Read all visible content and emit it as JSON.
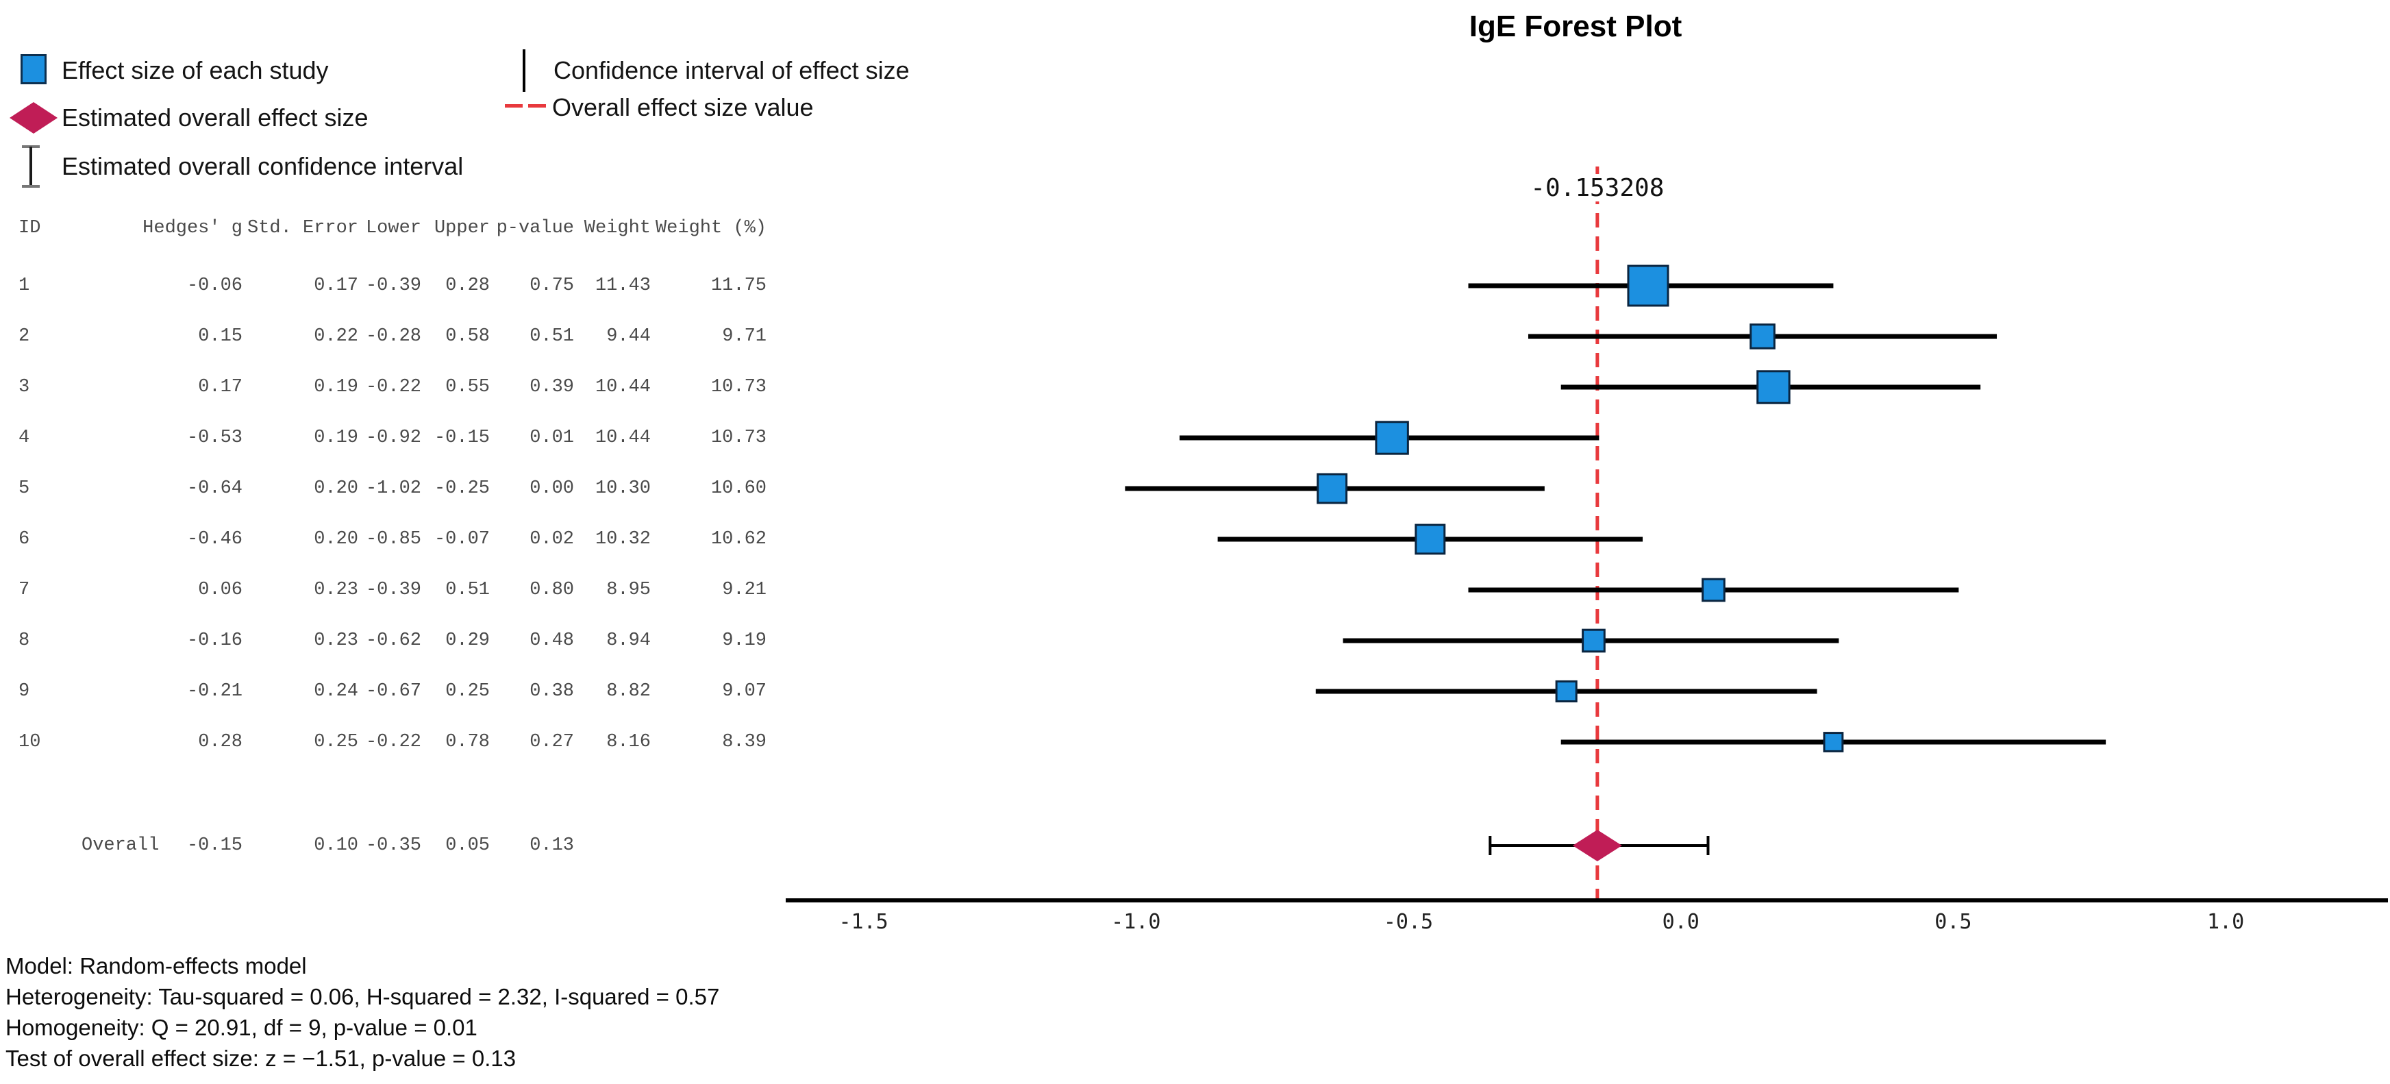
{
  "title": "IgE Forest Plot",
  "legend": {
    "items": [
      {
        "icon": "study-square-icon",
        "label": "Effect size of each study"
      },
      {
        "icon": "overall-diamond-icon",
        "label": "Estimated overall effect size"
      },
      {
        "icon": "overall-ci-icon",
        "label": "Estimated overall confidence interval"
      },
      {
        "icon": "ci-line-icon",
        "label": "Confidence interval of effect size"
      },
      {
        "icon": "ref-line-icon",
        "label": "Overall effect size value"
      }
    ]
  },
  "table": {
    "columns": [
      "ID",
      "Hedges' g",
      "Std. Error",
      "Lower",
      "Upper",
      "p-value",
      "Weight",
      "Weight (%)"
    ],
    "rows": [
      [
        "1",
        "-0.06",
        "0.17",
        "-0.39",
        "0.28",
        "0.75",
        "11.43",
        "11.75"
      ],
      [
        "2",
        "0.15",
        "0.22",
        "-0.28",
        "0.58",
        "0.51",
        "9.44",
        "9.71"
      ],
      [
        "3",
        "0.17",
        "0.19",
        "-0.22",
        "0.55",
        "0.39",
        "10.44",
        "10.73"
      ],
      [
        "4",
        "-0.53",
        "0.19",
        "-0.92",
        "-0.15",
        "0.01",
        "10.44",
        "10.73"
      ],
      [
        "5",
        "-0.64",
        "0.20",
        "-1.02",
        "-0.25",
        "0.00",
        "10.30",
        "10.60"
      ],
      [
        "6",
        "-0.46",
        "0.20",
        "-0.85",
        "-0.07",
        "0.02",
        "10.32",
        "10.62"
      ],
      [
        "7",
        "0.06",
        "0.23",
        "-0.39",
        "0.51",
        "0.80",
        "8.95",
        "9.21"
      ],
      [
        "8",
        "-0.16",
        "0.23",
        "-0.62",
        "0.29",
        "0.48",
        "8.94",
        "9.19"
      ],
      [
        "9",
        "-0.21",
        "0.24",
        "-0.67",
        "0.25",
        "0.38",
        "8.82",
        "9.07"
      ],
      [
        "10",
        "0.28",
        "0.25",
        "-0.22",
        "0.78",
        "0.27",
        "8.16",
        "8.39"
      ]
    ],
    "overall_row": [
      "Overall",
      "-0.15",
      "0.10",
      "-0.35",
      "0.05",
      "0.13"
    ]
  },
  "chart_data": {
    "type": "forest",
    "title": "IgE Forest Plot",
    "x_axis": {
      "ticks": [
        {
          "value": -1.5,
          "label": "-1.5"
        },
        {
          "value": -1.0,
          "label": "-1.0"
        },
        {
          "value": -0.5,
          "label": "-0.5"
        },
        {
          "value": 0.0,
          "label": "0.0"
        },
        {
          "value": 0.5,
          "label": "0.5"
        },
        {
          "value": 1.0,
          "label": "1.0"
        }
      ],
      "range": [
        -1.64,
        1.3
      ]
    },
    "reference_line": {
      "value": -0.153208,
      "label": "-0.153208",
      "style": "dashed"
    },
    "studies": [
      {
        "id": "1",
        "g": -0.06,
        "se": 0.17,
        "lower": -0.39,
        "upper": 0.28,
        "p": 0.75,
        "weight": 11.43,
        "weight_pct": 11.75
      },
      {
        "id": "2",
        "g": 0.15,
        "se": 0.22,
        "lower": -0.28,
        "upper": 0.58,
        "p": 0.51,
        "weight": 9.44,
        "weight_pct": 9.71
      },
      {
        "id": "3",
        "g": 0.17,
        "se": 0.19,
        "lower": -0.22,
        "upper": 0.55,
        "p": 0.39,
        "weight": 10.44,
        "weight_pct": 10.73
      },
      {
        "id": "4",
        "g": -0.53,
        "se": 0.19,
        "lower": -0.92,
        "upper": -0.15,
        "p": 0.01,
        "weight": 10.44,
        "weight_pct": 10.73
      },
      {
        "id": "5",
        "g": -0.64,
        "se": 0.2,
        "lower": -1.02,
        "upper": -0.25,
        "p": 0.0,
        "weight": 10.3,
        "weight_pct": 10.6
      },
      {
        "id": "6",
        "g": -0.46,
        "se": 0.2,
        "lower": -0.85,
        "upper": -0.07,
        "p": 0.02,
        "weight": 10.32,
        "weight_pct": 10.62
      },
      {
        "id": "7",
        "g": 0.06,
        "se": 0.23,
        "lower": -0.39,
        "upper": 0.51,
        "p": 0.8,
        "weight": 8.95,
        "weight_pct": 9.21
      },
      {
        "id": "8",
        "g": -0.16,
        "se": 0.23,
        "lower": -0.62,
        "upper": 0.29,
        "p": 0.48,
        "weight": 8.94,
        "weight_pct": 9.19
      },
      {
        "id": "9",
        "g": -0.21,
        "se": 0.24,
        "lower": -0.67,
        "upper": 0.25,
        "p": 0.38,
        "weight": 8.82,
        "weight_pct": 9.07
      },
      {
        "id": "10",
        "g": 0.28,
        "se": 0.25,
        "lower": -0.22,
        "upper": 0.78,
        "p": 0.27,
        "weight": 8.16,
        "weight_pct": 8.39
      }
    ],
    "overall": {
      "id": "Overall",
      "g": -0.15,
      "se": 0.1,
      "lower": -0.35,
      "upper": 0.05,
      "p": 0.13
    },
    "colors": {
      "study_marker": "#1c90e0",
      "study_marker_border": "#0a2540",
      "overall_diamond": "#c01d56",
      "ci_line": "#000000",
      "reference_line": "#e8393d",
      "axis": "#000000"
    },
    "legend_position": "top-left",
    "grid": false
  },
  "footer": {
    "lines": [
      "Model: Random-effects model",
      "Heterogeneity: Tau-squared = 0.06, H-squared = 2.32, I-squared = 0.57",
      "Homogeneity: Q = 20.91, df = 9, p-value = 0.01",
      "Test of overall effect size: z = −1.51, p-value = 0.13"
    ]
  }
}
